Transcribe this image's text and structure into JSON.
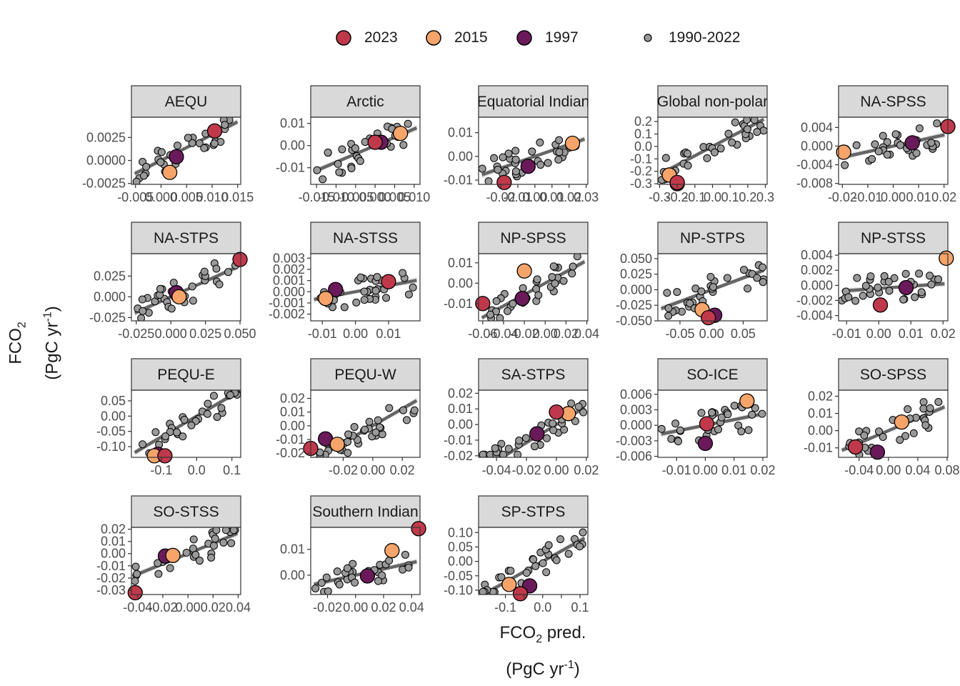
{
  "legend": [
    {
      "label": "2023",
      "color": "#c0394b",
      "size": "large"
    },
    {
      "label": "2015",
      "color": "#f6a46a",
      "size": "large"
    },
    {
      "label": "1997",
      "color": "#6a1a5a",
      "size": "large"
    },
    {
      "label": "1990-2022",
      "color": "#999999",
      "size": "small"
    }
  ],
  "axes": {
    "ylabel_line1": "FCO",
    "ylabel_sub": "2",
    "ylabel_line2": "(PgC yr",
    "ylabel_sup": "-1",
    "ylabel_close": ")",
    "xlabel_line1": "FCO",
    "xlabel_sub": "2",
    "xlabel_pred": " pred.",
    "xlabel_line2": "(PgC yr",
    "xlabel_sup": "-1",
    "xlabel_close": ")"
  },
  "colors": {
    "panel_strip": "#d9d9d9",
    "fit_line": "#666666",
    "ribbon": "#d9d9d9",
    "point_gray": "#999999",
    "y2023": "#c0394b",
    "y2015": "#f6a46a",
    "y1997": "#6a1a5a"
  },
  "chart_data": [
    {
      "type": "scatter",
      "title": "AEQU",
      "xlim": [
        -0.0058,
        0.0156
      ],
      "ylim": [
        -0.0026,
        0.0047
      ],
      "xticks": [
        -0.005,
        0.0,
        0.005,
        0.01,
        0.015
      ],
      "xtick_labels": [
        "-0.005",
        "0.000",
        "0.005",
        "0.010",
        "0.015"
      ],
      "yticks": [
        -0.0025,
        0.0,
        0.0025
      ],
      "ytick_labels": [
        "-0.0025",
        "0.0000",
        "0.0025"
      ],
      "fit": {
        "slope": 0.28,
        "intercept": 0.0
      },
      "seed": 1,
      "highlights": {
        "2023": [
          0.0105,
          0.0032
        ],
        "2015": [
          0.0017,
          -0.0013
        ],
        "1997": [
          0.003,
          0.0004
        ]
      }
    },
    {
      "type": "scatter",
      "title": "Arctic",
      "xlim": [
        -0.0165,
        0.0115
      ],
      "ylim": [
        -0.0175,
        0.0128
      ],
      "xticks": [
        -0.015,
        -0.01,
        -0.005,
        0.0,
        0.005,
        0.01
      ],
      "xtick_labels": [
        "-0.015",
        "-0.010",
        "-0.005",
        "0.000",
        "0.005",
        "0.010"
      ],
      "yticks": [
        -0.01,
        0.0,
        0.01
      ],
      "ytick_labels": [
        "-0.01",
        "0.00",
        "0.01"
      ],
      "fit": {
        "slope": 0.75,
        "intercept": 0.0
      },
      "seed": 2,
      "highlights": {
        "2023": [
          0.0,
          0.0015
        ],
        "2015": [
          0.0065,
          0.0055
        ],
        "1997": [
          0.0015,
          0.0015
        ]
      }
    },
    {
      "type": "scatter",
      "title": "Equatorial Indian",
      "xlim": [
        -0.033,
        0.031
      ],
      "ylim": [
        -0.0118,
        0.0165
      ],
      "xticks": [
        -0.02,
        -0.01,
        0.0,
        0.01,
        0.02,
        0.03
      ],
      "xtick_labels": [
        "-0.02",
        "-0.01",
        "0.00",
        "0.01",
        "0.02",
        "0.03"
      ],
      "yticks": [
        -0.01,
        0.0,
        0.01
      ],
      "ytick_labels": [
        "-0.01",
        "0.00",
        "0.01"
      ],
      "fit": {
        "slope": 0.25,
        "intercept": 0.0
      },
      "seed": 3,
      "highlights": {
        "2023": [
          -0.018,
          -0.011
        ],
        "2015": [
          0.022,
          0.0055
        ],
        "1997": [
          -0.004,
          -0.0042
        ]
      }
    },
    {
      "type": "scatter",
      "title": "Global non-polar",
      "xlim": [
        -0.31,
        0.31
      ],
      "ylim": [
        -0.305,
        0.235
      ],
      "xticks": [
        -0.3,
        -0.2,
        -0.1,
        0.0,
        0.1,
        0.2,
        0.3
      ],
      "xtick_labels": [
        "-0.3",
        "-0.2",
        "-0.1",
        "0.0",
        "0.1",
        "0.2",
        "0.3"
      ],
      "yticks": [
        -0.3,
        -0.2,
        -0.1,
        0.0,
        0.1,
        0.2
      ],
      "ytick_labels": [
        "-0.3",
        "-0.2",
        "-0.1",
        "0.0",
        "0.1",
        "0.2"
      ],
      "fit": {
        "slope": 0.75,
        "intercept": 0.0
      },
      "seed": 4,
      "highlights": {
        "2023": [
          -0.2,
          -0.29
        ],
        "2015": [
          -0.245,
          -0.23
        ],
        "1997": [
          -0.2,
          -0.3
        ]
      }
    },
    {
      "type": "scatter",
      "title": "NA-SPSS",
      "xlim": [
        -0.0215,
        0.0215
      ],
      "ylim": [
        -0.0082,
        0.0062
      ],
      "xticks": [
        -0.02,
        -0.01,
        0.0,
        0.01,
        0.02
      ],
      "xtick_labels": [
        "-0.02",
        "-0.01",
        "0.00",
        "0.01",
        "0.02"
      ],
      "yticks": [
        -0.008,
        -0.004,
        0.0,
        0.004
      ],
      "ytick_labels": [
        "-0.008",
        "-0.004",
        "0.000",
        "0.004"
      ],
      "fit": {
        "slope": 0.12,
        "intercept": 0.0
      },
      "seed": 5,
      "highlights": {
        "2023": [
          0.0215,
          0.0042
        ],
        "2015": [
          -0.0195,
          -0.0013
        ],
        "1997": [
          0.0075,
          0.0007
        ]
      }
    },
    {
      "type": "scatter",
      "title": "NA-STPS",
      "xlim": [
        -0.0285,
        0.0505
      ],
      "ylim": [
        -0.029,
        0.052
      ],
      "xticks": [
        -0.025,
        0.0,
        0.025,
        0.05
      ],
      "xtick_labels": [
        "-0.025",
        "0.000",
        "0.025",
        "0.050"
      ],
      "yticks": [
        -0.025,
        0.0,
        0.025
      ],
      "ytick_labels": [
        "-0.025",
        "0.000",
        "0.025"
      ],
      "fit": {
        "slope": 0.75,
        "intercept": 0.0
      },
      "seed": 6,
      "highlights": {
        "2023": [
          0.05,
          0.045
        ],
        "2015": [
          0.006,
          0.0
        ],
        "1997": [
          0.004,
          0.005
        ]
      }
    },
    {
      "type": "scatter",
      "title": "NA-STSS",
      "xlim": [
        -0.0135,
        0.0195
      ],
      "ylim": [
        -0.0026,
        0.0034
      ],
      "xticks": [
        -0.01,
        0.0,
        0.01
      ],
      "xtick_labels": [
        "-0.01",
        "0.00",
        "0.01"
      ],
      "yticks": [
        -0.002,
        -0.001,
        0.0,
        0.001,
        0.002,
        0.003
      ],
      "ytick_labels": [
        "-0.002",
        "-0.001",
        "0.000",
        "0.001",
        "0.002",
        "0.003"
      ],
      "fit": {
        "slope": 0.055,
        "intercept": 0.0
      },
      "seed": 7,
      "highlights": {
        "2023": [
          0.01,
          0.0009
        ],
        "2015": [
          -0.009,
          -0.0006
        ],
        "1997": [
          -0.006,
          0.0002
        ]
      }
    },
    {
      "type": "scatter",
      "title": "NP-SPSS",
      "xlim": [
        -0.064,
        0.041
      ],
      "ylim": [
        -0.0185,
        0.0145
      ],
      "xticks": [
        -0.06,
        -0.04,
        -0.02,
        0.0,
        0.02,
        0.04
      ],
      "xtick_labels": [
        "-0.06",
        "-0.04",
        "-0.02",
        "0.00",
        "0.02",
        "0.04"
      ],
      "yticks": [
        -0.01,
        0.0,
        0.01
      ],
      "ytick_labels": [
        "-0.01",
        "0.00",
        "0.01"
      ],
      "fit": {
        "slope": 0.28,
        "intercept": 0.0
      },
      "seed": 8,
      "highlights": {
        "2023": [
          -0.06,
          -0.01
        ],
        "2015": [
          -0.02,
          0.006
        ],
        "1997": [
          -0.022,
          -0.0075
        ]
      }
    },
    {
      "type": "scatter",
      "title": "NP-STPS",
      "xlim": [
        -0.085,
        0.088
      ],
      "ylim": [
        -0.05,
        0.058
      ],
      "xticks": [
        -0.05,
        0.0,
        0.05
      ],
      "xtick_labels": [
        "-0.05",
        "0.00",
        "0.05"
      ],
      "yticks": [
        -0.05,
        -0.025,
        0.0,
        0.025,
        0.05
      ],
      "ytick_labels": [
        "-0.050",
        "-0.025",
        "0.000",
        "0.025",
        "0.050"
      ],
      "fit": {
        "slope": 0.38,
        "intercept": 0.0
      },
      "seed": 9,
      "highlights": {
        "2023": [
          -0.005,
          -0.045
        ],
        "2015": [
          -0.015,
          -0.032
        ],
        "1997": [
          0.005,
          -0.041
        ]
      }
    },
    {
      "type": "scatter",
      "title": "NP-STSS",
      "xlim": [
        -0.0125,
        0.0215
      ],
      "ylim": [
        -0.0047,
        0.0042
      ],
      "xticks": [
        -0.01,
        0.0,
        0.01,
        0.02
      ],
      "xtick_labels": [
        "-0.01",
        "0.00",
        "0.01",
        "0.02"
      ],
      "yticks": [
        -0.004,
        -0.002,
        0.0,
        0.002,
        0.004
      ],
      "ytick_labels": [
        "-0.004",
        "-0.002",
        "0.000",
        "0.002",
        "0.004"
      ],
      "fit": {
        "slope": 0.03,
        "intercept": -0.0004
      },
      "seed": 10,
      "highlights": {
        "2023": [
          0.0005,
          -0.0026
        ],
        "2015": [
          0.021,
          0.0036
        ],
        "1997": [
          0.0085,
          -0.0003
        ]
      }
    },
    {
      "type": "scatter",
      "title": "PEQU-E",
      "xlim": [
        -0.185,
        0.125
      ],
      "ylim": [
        -0.135,
        0.085
      ],
      "xticks": [
        -0.1,
        0.0,
        0.1
      ],
      "xtick_labels": [
        "-0.1",
        "0.0",
        "0.1"
      ],
      "yticks": [
        -0.1,
        -0.05,
        0.0,
        0.05
      ],
      "ytick_labels": [
        "-0.10",
        "-0.05",
        "0.00",
        "0.05"
      ],
      "fit": {
        "slope": 0.68,
        "intercept": 0.0
      },
      "seed": 11,
      "highlights": {
        "2023": [
          -0.09,
          -0.13
        ],
        "2015": [
          -0.12,
          -0.13
        ],
        "1997": [
          -0.11,
          -0.125
        ]
      }
    },
    {
      "type": "scatter",
      "title": "PEQU-W",
      "xlim": [
        -0.042,
        0.032
      ],
      "ylim": [
        -0.023,
        0.026
      ],
      "xticks": [
        -0.02,
        0.0,
        0.02
      ],
      "xtick_labels": [
        "-0.02",
        "0.00",
        "0.02"
      ],
      "yticks": [
        -0.02,
        -0.01,
        0.0,
        0.01,
        0.02
      ],
      "ytick_labels": [
        "-0.02",
        "-0.01",
        "0.00",
        "0.01",
        "0.02"
      ],
      "fit": {
        "slope": 0.62,
        "intercept": 0.0
      },
      "seed": 12,
      "highlights": {
        "2023": [
          -0.042,
          -0.0165
        ],
        "2015": [
          -0.024,
          -0.0135
        ],
        "1997": [
          -0.032,
          -0.0095
        ]
      }
    },
    {
      "type": "scatter",
      "title": "SA-STPS",
      "xlim": [
        -0.052,
        0.021
      ],
      "ylim": [
        -0.021,
        0.022
      ],
      "xticks": [
        -0.04,
        -0.02,
        0.0,
        0.02
      ],
      "xtick_labels": [
        "-0.04",
        "-0.02",
        "0.00",
        "0.02"
      ],
      "yticks": [
        -0.02,
        -0.01,
        0.0,
        0.01,
        0.02
      ],
      "ytick_labels": [
        "-0.02",
        "-0.01",
        "0.00",
        "0.01",
        "0.02"
      ],
      "fit": {
        "slope": 0.58,
        "intercept": 0.0
      },
      "seed": 13,
      "highlights": {
        "2023": [
          0.0,
          0.008
        ],
        "2015": [
          0.008,
          0.007
        ],
        "1997": [
          -0.013,
          -0.006
        ]
      }
    },
    {
      "type": "scatter",
      "title": "SO-ICE",
      "xlim": [
        -0.0165,
        0.0215
      ],
      "ylim": [
        -0.0062,
        0.0068
      ],
      "xticks": [
        -0.01,
        0.0,
        0.01,
        0.02
      ],
      "xtick_labels": [
        "-0.01",
        "0.00",
        "0.01",
        "0.02"
      ],
      "yticks": [
        -0.006,
        -0.003,
        0.0,
        0.003,
        0.006
      ],
      "ytick_labels": [
        "-0.006",
        "-0.003",
        "0.000",
        "0.003",
        "0.006"
      ],
      "fit": {
        "slope": 0.11,
        "intercept": 0.0
      },
      "seed": 14,
      "highlights": {
        "2023": [
          0.0005,
          0.0003
        ],
        "2015": [
          0.0145,
          0.0047
        ],
        "1997": [
          0.0,
          -0.0035
        ]
      }
    },
    {
      "type": "scatter",
      "title": "SO-SPSS",
      "xlim": [
        -0.068,
        0.081
      ],
      "ylim": [
        -0.0155,
        0.0235
      ],
      "xticks": [
        -0.04,
        0.0,
        0.04,
        0.08
      ],
      "xtick_labels": [
        "-0.04",
        "0.00",
        "0.04",
        "0.08"
      ],
      "yticks": [
        -0.01,
        0.0,
        0.01,
        0.02
      ],
      "ytick_labels": [
        "-0.01",
        "0.00",
        "0.01",
        "0.02"
      ],
      "fit": {
        "slope": 0.18,
        "intercept": 0.0
      },
      "seed": 15,
      "highlights": {
        "2023": [
          -0.045,
          -0.0095
        ],
        "2015": [
          0.018,
          0.005
        ],
        "1997": [
          -0.015,
          -0.0125
        ]
      }
    },
    {
      "type": "scatter",
      "title": "SO-STSS",
      "xlim": [
        -0.045,
        0.042
      ],
      "ylim": [
        -0.0335,
        0.0215
      ],
      "xticks": [
        -0.04,
        -0.02,
        0.0,
        0.02,
        0.04
      ],
      "xtick_labels": [
        "-0.04",
        "-0.02",
        "0.00",
        "0.02",
        "0.04"
      ],
      "yticks": [
        -0.03,
        -0.02,
        -0.01,
        0.0,
        0.01,
        0.02
      ],
      "ytick_labels": [
        "-0.03",
        "-0.02",
        "-0.01",
        "0.00",
        "0.01",
        "0.02"
      ],
      "fit": {
        "slope": 0.42,
        "intercept": 0.0
      },
      "seed": 16,
      "highlights": {
        "2023": [
          -0.042,
          -0.032
        ],
        "2015": [
          -0.012,
          -0.0015
        ],
        "1997": [
          -0.018,
          -0.002
        ]
      }
    },
    {
      "type": "scatter",
      "title": "Southern Indian",
      "xlim": [
        -0.032,
        0.046
      ],
      "ylim": [
        -0.0075,
        0.0185
      ],
      "xticks": [
        -0.02,
        0.0,
        0.02,
        0.04
      ],
      "xtick_labels": [
        "-0.02",
        "0.00",
        "0.02",
        "0.04"
      ],
      "yticks": [
        0.0,
        0.01
      ],
      "ytick_labels": [
        "0.00",
        "0.01"
      ],
      "fit": {
        "slope": 0.12,
        "intercept": 0.0
      },
      "seed": 17,
      "highlights": {
        "2023": [
          0.045,
          0.018
        ],
        "2015": [
          0.026,
          0.0095
        ],
        "1997": [
          0.0085,
          -0.0003
        ]
      }
    },
    {
      "type": "scatter",
      "title": "SP-STPS",
      "xlim": [
        -0.172,
        0.121
      ],
      "ylim": [
        -0.115,
        0.118
      ],
      "xticks": [
        -0.1,
        -0.05,
        0.0,
        0.05,
        0.1
      ],
      "xtick_labels": [
        "-0.1",
        "",
        "0.0",
        "",
        "0.1"
      ],
      "yticks": [
        -0.1,
        -0.05,
        0.0,
        0.05,
        0.1
      ],
      "ytick_labels": [
        "-0.10",
        "-0.05",
        "0.00",
        "0.05",
        "0.10"
      ],
      "fit": {
        "slope": 0.72,
        "intercept": 0.0
      },
      "seed": 18,
      "highlights": {
        "2023": [
          -0.06,
          -0.112
        ],
        "2015": [
          -0.09,
          -0.08
        ],
        "1997": [
          -0.035,
          -0.085
        ]
      }
    }
  ]
}
